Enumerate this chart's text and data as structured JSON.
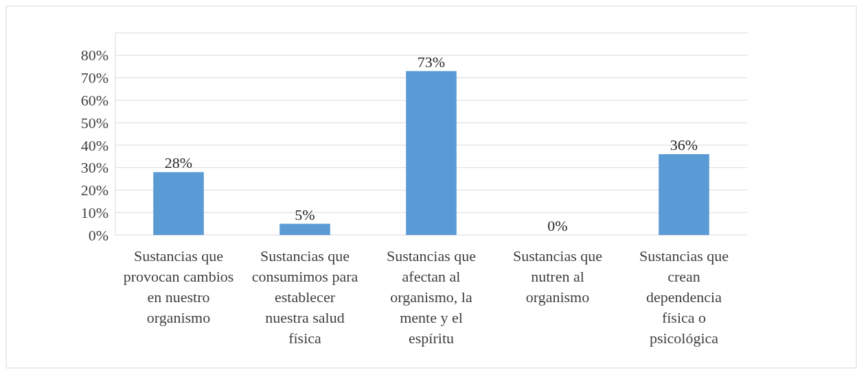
{
  "chart_data": {
    "type": "bar",
    "categories": [
      "Sustancias que provocan cambios en nuestro organismo",
      "Sustancias que consumimos para establecer nuestra salud física",
      "Sustancias que afectan al organismo, la mente y el espíritu",
      "Sustancias que nutren al organismo",
      "Sustancias que crean dependencia física o psicológica"
    ],
    "values": [
      28,
      5,
      73,
      0,
      36
    ],
    "value_labels": [
      "28%",
      "5%",
      "73%",
      "0%",
      "36%"
    ],
    "color": "#5b9bd5",
    "ylim": [
      0,
      90
    ],
    "yticks": [
      {
        "value": 0,
        "label": "0%"
      },
      {
        "value": 10,
        "label": "10%"
      },
      {
        "value": 20,
        "label": "20%"
      },
      {
        "value": 30,
        "label": "30%"
      },
      {
        "value": 40,
        "label": "40%"
      },
      {
        "value": 50,
        "label": "50%"
      },
      {
        "value": 60,
        "label": "60%"
      },
      {
        "value": 70,
        "label": "70%"
      },
      {
        "value": 80,
        "label": "80%"
      },
      {
        "value": 90,
        "label": null
      }
    ],
    "grid": "y"
  }
}
